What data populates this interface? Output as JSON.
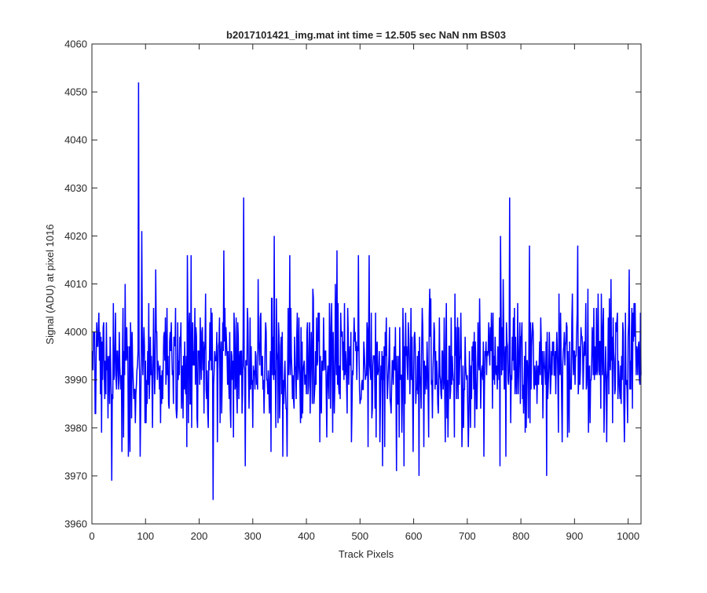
{
  "chart_data": {
    "type": "line",
    "title": "b2017101421_img.mat int time = 12.505 sec  NaN nm BS03",
    "xlabel": "Track Pixels",
    "ylabel": "Signal (ADU) at pixel 1016",
    "xlim": [
      0,
      1024
    ],
    "ylim": [
      3960,
      4060
    ],
    "xticks": [
      0,
      100,
      200,
      300,
      400,
      500,
      600,
      700,
      800,
      900,
      1000
    ],
    "yticks": [
      3960,
      3970,
      3980,
      3990,
      4000,
      4010,
      4020,
      4030,
      4040,
      4050,
      4060
    ],
    "grid": false,
    "legend": "none",
    "series": [
      {
        "color": "#0000ff",
        "line_width": 1.5,
        "x_start": 1,
        "x_step": 1,
        "length": 1024,
        "baseline": 3993,
        "spread": 7,
        "seed": 20171014,
        "peaks": [
          [
            87,
            4052
          ],
          [
            226,
            3965
          ],
          [
            283,
            4028
          ],
          [
            779,
            4028
          ],
          [
            340,
            4020
          ],
          [
            93,
            4021
          ],
          [
            762,
            4020
          ],
          [
            37,
            3969
          ],
          [
            610,
            3970
          ],
          [
            848,
            3970
          ],
          [
            286,
            3972
          ],
          [
            582,
            3972
          ],
          [
            761,
            3972
          ],
          [
            568,
            3971
          ],
          [
            542,
            3972
          ],
          [
            906,
            4018
          ],
          [
            816,
            4018
          ],
          [
            246,
            4017
          ],
          [
            457,
            4017
          ],
          [
            185,
            4016
          ],
          [
            178,
            4016
          ],
          [
            369,
            4016
          ],
          [
            497,
            4016
          ],
          [
            517,
            4016
          ]
        ]
      }
    ]
  }
}
